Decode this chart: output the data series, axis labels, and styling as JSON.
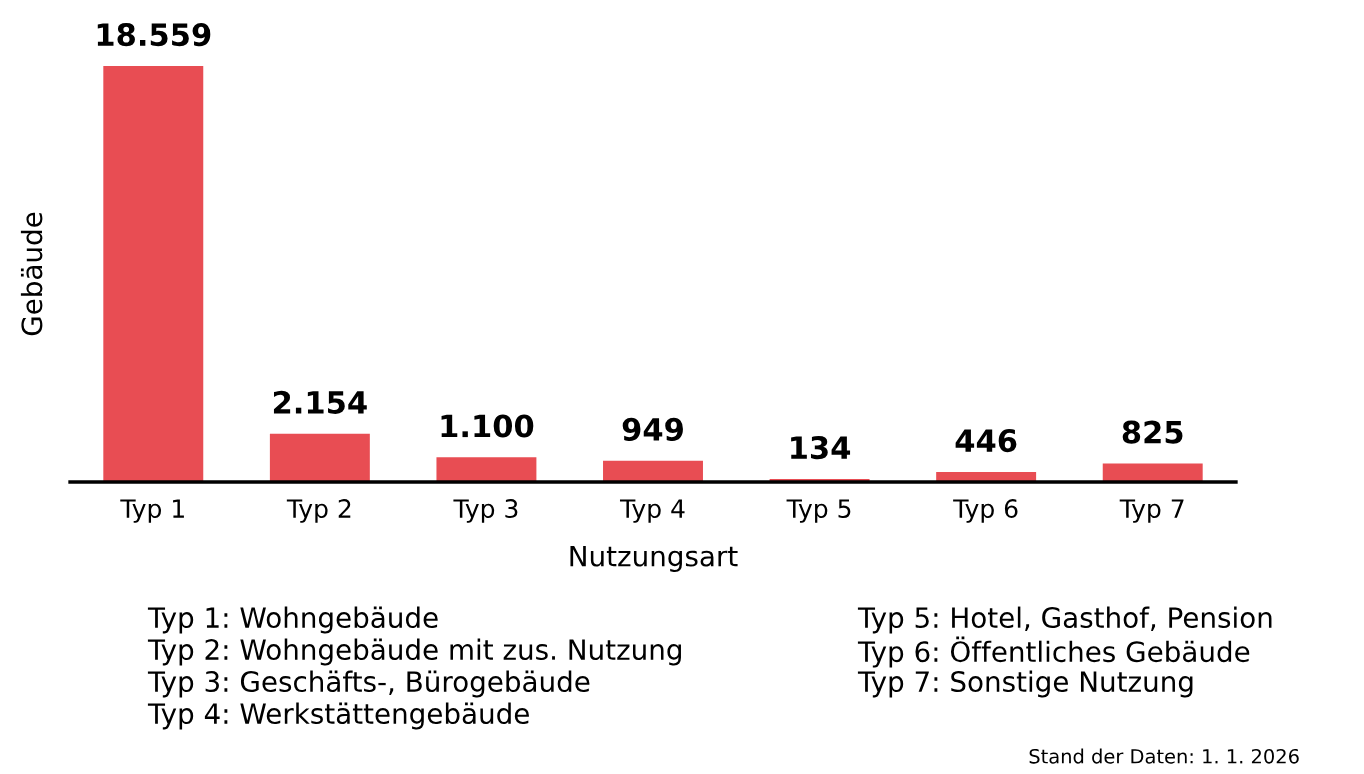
{
  "chart_data": {
    "type": "bar",
    "xlabel": "Nutzungsart",
    "ylabel": "Gebäude",
    "categories": [
      "Typ 1",
      "Typ 2",
      "Typ 3",
      "Typ 4",
      "Typ 5",
      "Typ 6",
      "Typ 7"
    ],
    "values": [
      18559,
      2154,
      1100,
      949,
      134,
      446,
      825
    ],
    "value_labels": [
      "18.559",
      "2.154",
      "1.100",
      "949",
      "134",
      "446",
      "825"
    ],
    "color": "#e84d53",
    "grid": false,
    "legend": false,
    "tick_labels": "x",
    "annotations": [
      "Typ 1: Wohngebäude",
      "Typ 2: Wohngebäude mit zus. Nutzung",
      "Typ 3: Geschäfts-, Bürogebäude",
      "Typ 4: Werkstättengebäude",
      "Typ 5: Hotel, Gasthof, Pension",
      "Typ 6: Öffentliches Gebäude",
      "Typ 7: Sonstige Nutzung",
      "Stand der Daten: 1. 1. 2026"
    ]
  }
}
